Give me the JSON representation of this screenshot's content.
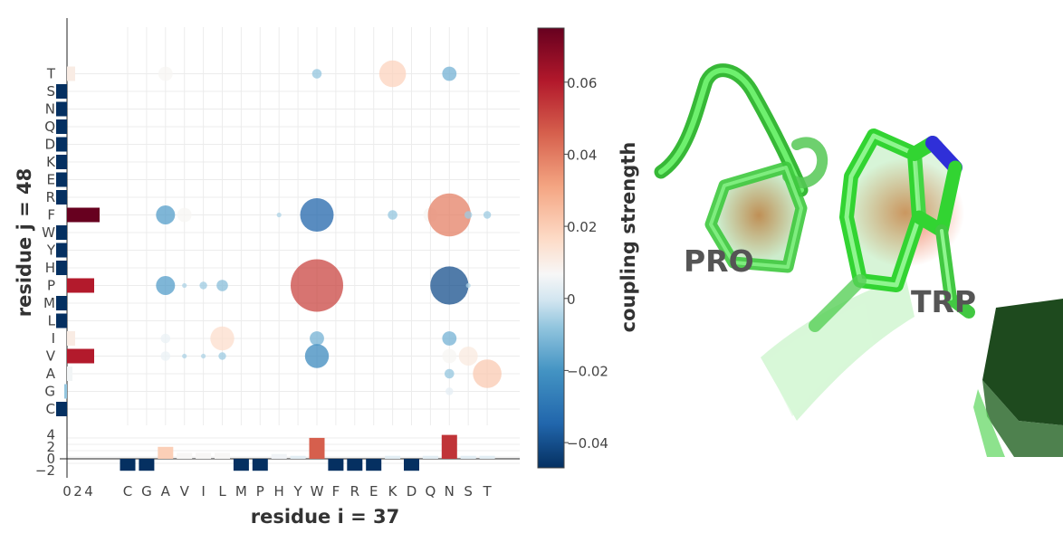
{
  "chart_data": {
    "type": "scatter",
    "subtype": "coupling-matrix-bubble-plot",
    "xlabel": "residue i = 37",
    "ylabel": "residue j = 48",
    "x_categories": [
      "C",
      "G",
      "A",
      "V",
      "I",
      "L",
      "M",
      "P",
      "H",
      "Y",
      "W",
      "F",
      "R",
      "E",
      "K",
      "D",
      "Q",
      "N",
      "S",
      "T"
    ],
    "y_categories": [
      "C",
      "G",
      "A",
      "V",
      "I",
      "L",
      "M",
      "P",
      "H",
      "Y",
      "W",
      "F",
      "R",
      "E",
      "K",
      "D",
      "Q",
      "N",
      "S",
      "T"
    ],
    "bubbles": [
      {
        "x": "A",
        "y": "T",
        "value": 0.015
      },
      {
        "x": "W",
        "y": "T",
        "value": -0.01
      },
      {
        "x": "K",
        "y": "T",
        "value": 0.028
      },
      {
        "x": "N",
        "y": "T",
        "value": -0.015
      },
      {
        "x": "A",
        "y": "F",
        "value": -0.02
      },
      {
        "x": "V",
        "y": "F",
        "value": 0.015
      },
      {
        "x": "W",
        "y": "F",
        "value": -0.035
      },
      {
        "x": "H",
        "y": "F",
        "value": -0.005
      },
      {
        "x": "K",
        "y": "F",
        "value": -0.01
      },
      {
        "x": "Q",
        "y": "F",
        "value": 0.015
      },
      {
        "x": "N",
        "y": "F",
        "value": 0.045
      },
      {
        "x": "S",
        "y": "F",
        "value": -0.008
      },
      {
        "x": "T",
        "y": "F",
        "value": -0.008
      },
      {
        "x": "A",
        "y": "P",
        "value": -0.02
      },
      {
        "x": "V",
        "y": "P",
        "value": -0.005
      },
      {
        "x": "I",
        "y": "P",
        "value": -0.008
      },
      {
        "x": "L",
        "y": "P",
        "value": -0.012
      },
      {
        "x": "W",
        "y": "P",
        "value": 0.055
      },
      {
        "x": "N",
        "y": "P",
        "value": -0.04
      },
      {
        "x": "S",
        "y": "P",
        "value": -0.005
      },
      {
        "x": "A",
        "y": "I",
        "value": 0.01
      },
      {
        "x": "L",
        "y": "I",
        "value": 0.025
      },
      {
        "x": "W",
        "y": "I",
        "value": -0.015
      },
      {
        "x": "N",
        "y": "I",
        "value": -0.015
      },
      {
        "x": "A",
        "y": "V",
        "value": 0.01
      },
      {
        "x": "V",
        "y": "V",
        "value": -0.005
      },
      {
        "x": "I",
        "y": "V",
        "value": -0.005
      },
      {
        "x": "L",
        "y": "V",
        "value": -0.008
      },
      {
        "x": "W",
        "y": "V",
        "value": -0.025
      },
      {
        "x": "N",
        "y": "V",
        "value": 0.015
      },
      {
        "x": "S",
        "y": "V",
        "value": 0.02
      },
      {
        "x": "N",
        "y": "A",
        "value": -0.01
      },
      {
        "x": "T",
        "y": "A",
        "value": 0.03
      },
      {
        "x": "N",
        "y": "G",
        "value": 0.008
      }
    ],
    "top_bars": {
      "categories": [
        "C",
        "G",
        "A",
        "V",
        "I",
        "L",
        "M",
        "P",
        "H",
        "Y",
        "W",
        "F",
        "R",
        "E",
        "K",
        "D",
        "Q",
        "N",
        "S",
        "T"
      ],
      "values": [
        -2,
        -2,
        2,
        1,
        1,
        1,
        -2,
        -2,
        0.8,
        0.5,
        3.5,
        -2,
        -2,
        -2,
        0.5,
        -2,
        0.5,
        4,
        0.5,
        0.5
      ],
      "ylim": [
        -2,
        4
      ],
      "ticks": [
        "4",
        "2",
        "0",
        "−2"
      ]
    },
    "side_bars": {
      "categories": [
        "C",
        "G",
        "A",
        "V",
        "I",
        "L",
        "M",
        "P",
        "H",
        "Y",
        "W",
        "F",
        "R",
        "E",
        "K",
        "D",
        "Q",
        "N",
        "S",
        "T"
      ],
      "values": [
        -2,
        -0.5,
        1,
        5,
        1.5,
        -2,
        -2,
        5,
        -2,
        -2,
        -2,
        6,
        -2,
        -2,
        -2,
        -2,
        -2,
        -2,
        -2,
        1.5
      ],
      "xlim": [
        -2,
        6
      ],
      "ticks": [
        "0",
        "2",
        "4"
      ]
    },
    "colorbar": {
      "title": "coupling strength",
      "range": [
        -0.047,
        0.075
      ],
      "ticks": [
        "0.06",
        "0.04",
        "0.02",
        "0",
        "−0.02",
        "−0.04"
      ],
      "colors": [
        "#053061",
        "#2166ac",
        "#4393c3",
        "#92c5de",
        "#d1e5f0",
        "#f7f7f7",
        "#fddbc7",
        "#f4a582",
        "#d6604d",
        "#b2182b",
        "#67001f"
      ]
    }
  },
  "molecule": {
    "labels": {
      "pro": "PRO",
      "trp": "TRP"
    }
  }
}
